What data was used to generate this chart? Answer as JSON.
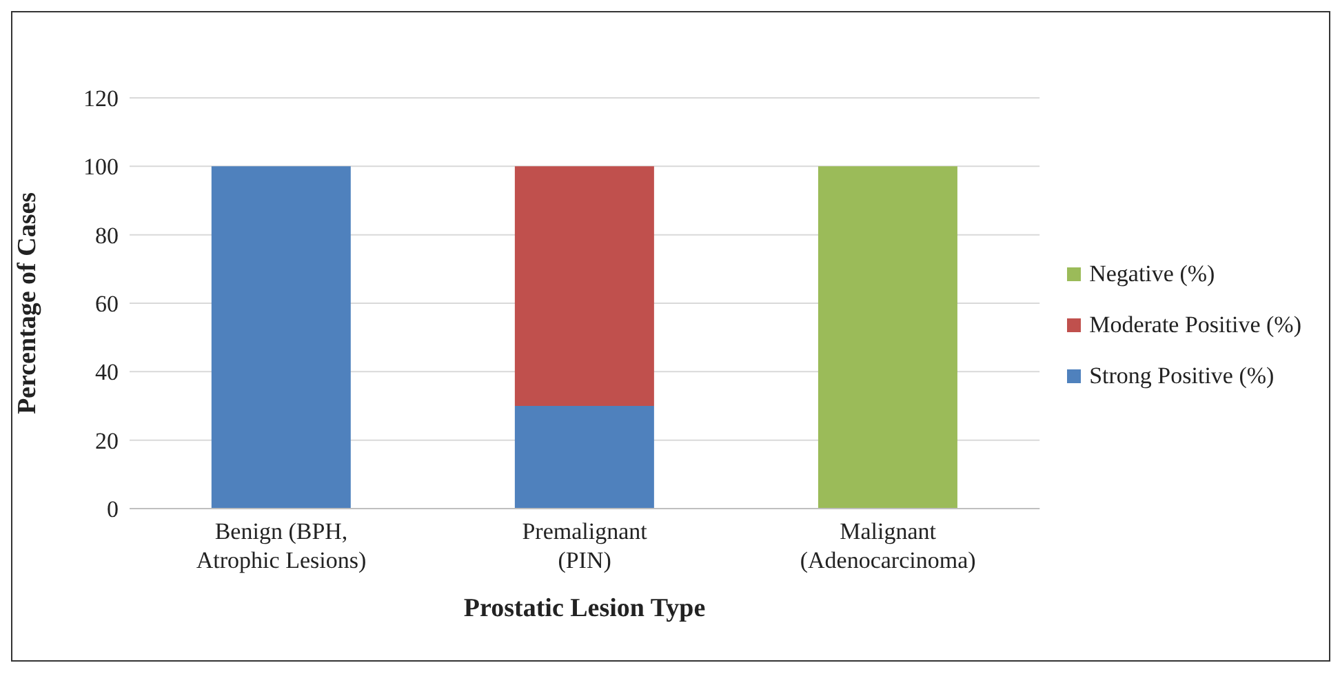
{
  "chart_data": {
    "type": "bar",
    "stacked": true,
    "xlabel": "Prostatic Lesion Type",
    "ylabel": "Percentage of Cases",
    "categories": [
      "Benign (BPH, Atrophic Lesions)",
      "Premalignant (PIN)",
      "Malignant (Adenocarcinoma)"
    ],
    "series": [
      {
        "name": "Strong Positive (%)",
        "color": "#4f81bd",
        "values": [
          100,
          30,
          0
        ]
      },
      {
        "name": "Moderate Positive (%)",
        "color": "#c0504d",
        "values": [
          0,
          70,
          0
        ]
      },
      {
        "name": "Negative (%)",
        "color": "#9bbb59",
        "values": [
          0,
          0,
          100
        ]
      }
    ],
    "ylim": [
      0,
      120
    ],
    "yticks": [
      0,
      20,
      40,
      60,
      80,
      100,
      120
    ],
    "grid": "y",
    "legend": "right"
  }
}
